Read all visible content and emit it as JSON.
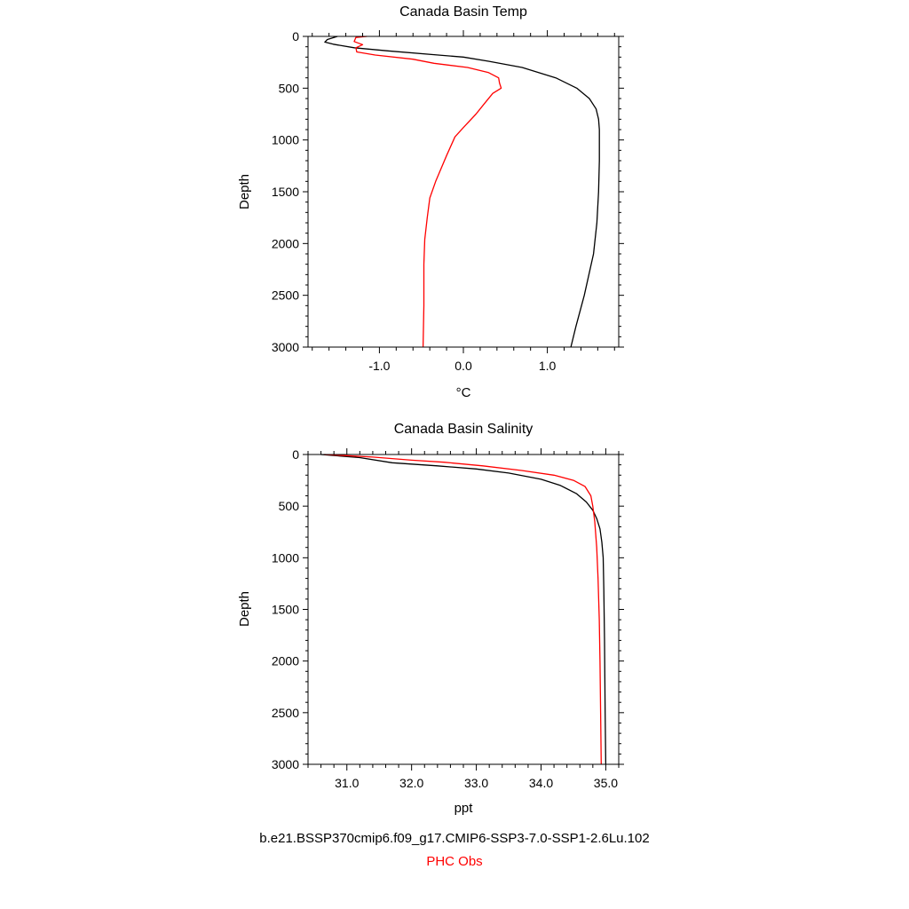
{
  "chart_data": [
    {
      "type": "line",
      "title": "Canada Basin Temp",
      "xlabel": "°C",
      "ylabel": "Depth",
      "xlim": [
        -1.85,
        1.85
      ],
      "ylim": [
        3000,
        0
      ],
      "y_inverted": true,
      "grid": false,
      "x_ticks": [
        -1.0,
        0.0,
        1.0
      ],
      "x_tick_labels": [
        "-1.0",
        "0.0",
        "1.0"
      ],
      "y_ticks": [
        0,
        500,
        1000,
        1500,
        2000,
        2500,
        3000
      ],
      "y_tick_labels": [
        "0",
        "500",
        "1000",
        "1500",
        "2000",
        "2500",
        "3000"
      ],
      "series": [
        {
          "name": "b.e21.BSSP370cmip6.f09_g17.CMIP6-SSP3-7.0-SSP1-2.6Lu.102",
          "color": "#000000",
          "points": [
            [
              -1.5,
              0
            ],
            [
              -1.62,
              30
            ],
            [
              -1.65,
              55
            ],
            [
              -1.55,
              75
            ],
            [
              -1.3,
              110
            ],
            [
              -0.9,
              140
            ],
            [
              -0.3,
              180
            ],
            [
              0.0,
              200
            ],
            [
              0.3,
              240
            ],
            [
              0.7,
              300
            ],
            [
              1.1,
              400
            ],
            [
              1.35,
              500
            ],
            [
              1.5,
              600
            ],
            [
              1.58,
              700
            ],
            [
              1.61,
              800
            ],
            [
              1.62,
              900
            ],
            [
              1.62,
              1200
            ],
            [
              1.61,
              1500
            ],
            [
              1.59,
              1800
            ],
            [
              1.55,
              2100
            ],
            [
              1.44,
              2500
            ],
            [
              1.34,
              2800
            ],
            [
              1.28,
              3000
            ]
          ]
        },
        {
          "name": "PHC Obs",
          "color": "#ff0000",
          "points": [
            [
              -1.15,
              0
            ],
            [
              -1.28,
              10
            ],
            [
              -1.3,
              50
            ],
            [
              -1.2,
              80
            ],
            [
              -1.28,
              110
            ],
            [
              -1.27,
              150
            ],
            [
              -1.05,
              180
            ],
            [
              -0.6,
              220
            ],
            [
              -0.35,
              260
            ],
            [
              0.05,
              300
            ],
            [
              0.3,
              350
            ],
            [
              0.42,
              400
            ],
            [
              0.43,
              450
            ],
            [
              0.45,
              500
            ],
            [
              0.35,
              550
            ],
            [
              0.25,
              650
            ],
            [
              0.15,
              750
            ],
            [
              0.0,
              880
            ],
            [
              -0.1,
              970
            ],
            [
              -0.2,
              1150
            ],
            [
              -0.33,
              1400
            ],
            [
              -0.4,
              1560
            ],
            [
              -0.43,
              1750
            ],
            [
              -0.46,
              1960
            ],
            [
              -0.47,
              2200
            ],
            [
              -0.47,
              2600
            ],
            [
              -0.48,
              3000
            ]
          ]
        }
      ]
    },
    {
      "type": "line",
      "title": "Canada Basin Salinity",
      "xlabel": "ppt",
      "ylabel": "Depth",
      "xlim": [
        30.4,
        35.2
      ],
      "ylim": [
        3000,
        0
      ],
      "y_inverted": true,
      "grid": false,
      "x_ticks": [
        31.0,
        32.0,
        33.0,
        34.0,
        35.0
      ],
      "x_tick_labels": [
        "31.0",
        "32.0",
        "33.0",
        "34.0",
        "35.0"
      ],
      "y_ticks": [
        0,
        500,
        1000,
        1500,
        2000,
        2500,
        3000
      ],
      "y_tick_labels": [
        "0",
        "500",
        "1000",
        "1500",
        "2000",
        "2500",
        "3000"
      ],
      "series": [
        {
          "name": "b.e21.BSSP370cmip6.f09_g17.CMIP6-SSP3-7.0-SSP1-2.6Lu.102",
          "color": "#000000",
          "points": [
            [
              30.6,
              0
            ],
            [
              31.2,
              30
            ],
            [
              31.7,
              80
            ],
            [
              32.4,
              110
            ],
            [
              33.0,
              140
            ],
            [
              33.5,
              180
            ],
            [
              34.0,
              240
            ],
            [
              34.3,
              300
            ],
            [
              34.55,
              380
            ],
            [
              34.7,
              460
            ],
            [
              34.8,
              540
            ],
            [
              34.86,
              620
            ],
            [
              34.91,
              720
            ],
            [
              34.94,
              850
            ],
            [
              34.96,
              1000
            ],
            [
              34.97,
              1300
            ],
            [
              34.98,
              1800
            ],
            [
              34.99,
              2500
            ],
            [
              35.0,
              3000
            ]
          ]
        },
        {
          "name": "PHC Obs",
          "color": "#ff0000",
          "points": [
            [
              30.65,
              0
            ],
            [
              31.4,
              25
            ],
            [
              32.0,
              55
            ],
            [
              32.5,
              75
            ],
            [
              33.1,
              110
            ],
            [
              33.7,
              155
            ],
            [
              34.2,
              200
            ],
            [
              34.5,
              250
            ],
            [
              34.68,
              310
            ],
            [
              34.77,
              400
            ],
            [
              34.8,
              500
            ],
            [
              34.83,
              650
            ],
            [
              34.86,
              900
            ],
            [
              34.88,
              1200
            ],
            [
              34.9,
              1600
            ],
            [
              34.91,
              2000
            ],
            [
              34.92,
              2500
            ],
            [
              34.93,
              3000
            ]
          ]
        }
      ]
    }
  ],
  "legend": {
    "model_label": "b.e21.BSSP370cmip6.f09_g17.CMIP6-SSP3-7.0-SSP1-2.6Lu.102",
    "obs_label": "PHC Obs",
    "model_color": "#000000",
    "obs_color": "#ff0000"
  }
}
